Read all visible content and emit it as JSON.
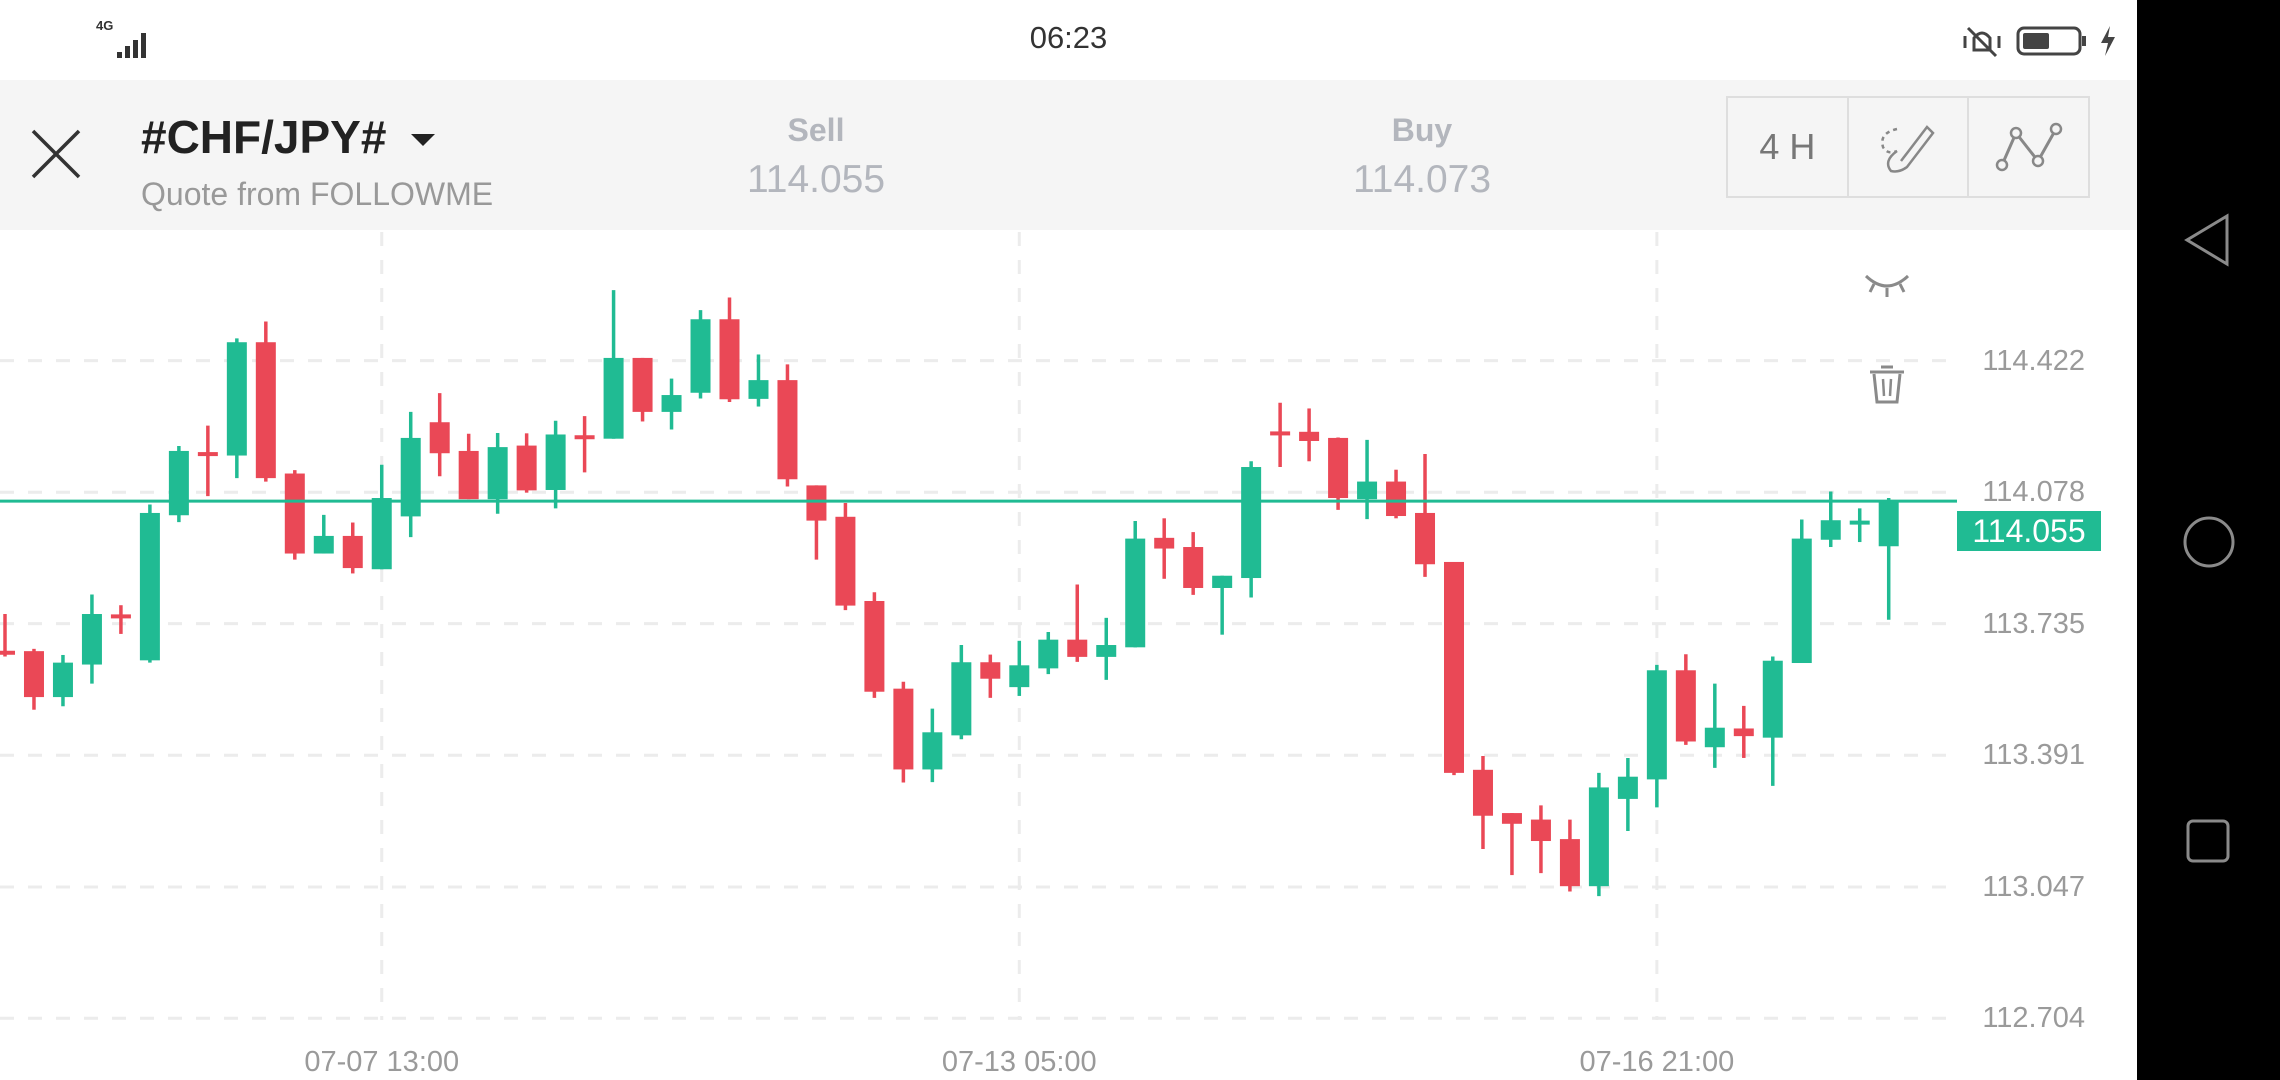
{
  "status_bar": {
    "time": "06:23",
    "network": "4G"
  },
  "header": {
    "symbol": "#CHF/JPY#",
    "subtitle": "Quote from FOLLOWME",
    "sell": {
      "label": "Sell",
      "value": "114.055"
    },
    "buy": {
      "label": "Buy",
      "value": "114.073"
    },
    "timeframe": "4 H",
    "icons": [
      "close-icon",
      "caret-down-icon",
      "draw-pen-icon",
      "line-tool-icon"
    ]
  },
  "side_tools": [
    "eye-closed-icon",
    "trash-icon"
  ],
  "nav_bar": [
    "back-icon",
    "home-icon",
    "recents-icon"
  ],
  "chart_data": {
    "type": "candlestick",
    "colors": {
      "up": "#20bb93",
      "down": "#ea4856",
      "current_line": "#20bb93"
    },
    "y_ticks": [
      "114.422",
      "114.078",
      "113.735",
      "113.391",
      "113.047",
      "112.704"
    ],
    "ylim": [
      112.704,
      114.65
    ],
    "x_ticks": [
      {
        "at_candle": 13,
        "label": "07-07 13:00"
      },
      {
        "at_candle": 35,
        "label": "07-13 05:00"
      },
      {
        "at_candle": 57,
        "label": "07-16 21:00"
      }
    ],
    "current_price": "114.055",
    "grid": true,
    "candles_ohlc": [
      [
        113.664,
        113.76,
        113.649,
        113.662
      ],
      [
        113.663,
        113.669,
        113.51,
        113.543
      ],
      [
        113.543,
        113.653,
        113.519,
        113.633
      ],
      [
        113.628,
        113.811,
        113.578,
        113.76
      ],
      [
        113.759,
        113.783,
        113.708,
        113.755
      ],
      [
        113.639,
        114.046,
        113.633,
        114.024
      ],
      [
        114.018,
        114.199,
        114.0,
        114.186
      ],
      [
        114.183,
        114.252,
        114.068,
        114.18
      ],
      [
        114.174,
        114.48,
        114.115,
        114.47
      ],
      [
        114.47,
        114.524,
        114.106,
        114.115
      ],
      [
        114.127,
        114.136,
        113.902,
        113.918
      ],
      [
        113.918,
        114.019,
        113.918,
        113.964
      ],
      [
        113.964,
        113.999,
        113.866,
        113.88
      ],
      [
        113.877,
        114.15,
        113.877,
        114.063
      ],
      [
        114.015,
        114.288,
        113.961,
        114.22
      ],
      [
        114.261,
        114.337,
        114.12,
        114.18
      ],
      [
        114.186,
        114.231,
        114.06,
        114.06
      ],
      [
        114.06,
        114.233,
        114.022,
        114.196
      ],
      [
        114.2,
        114.232,
        114.077,
        114.083
      ],
      [
        114.084,
        114.265,
        114.036,
        114.229
      ],
      [
        114.227,
        114.277,
        114.13,
        114.224
      ],
      [
        114.218,
        114.606,
        114.218,
        114.429
      ],
      [
        114.429,
        114.429,
        114.263,
        114.288
      ],
      [
        114.288,
        114.375,
        114.242,
        114.332
      ],
      [
        114.338,
        114.554,
        114.323,
        114.53
      ],
      [
        114.53,
        114.587,
        114.314,
        114.321
      ],
      [
        114.322,
        114.438,
        114.302,
        114.371
      ],
      [
        114.371,
        114.412,
        114.093,
        114.112
      ],
      [
        114.096,
        114.096,
        113.902,
        114.004
      ],
      [
        114.014,
        114.05,
        113.77,
        113.782
      ],
      [
        113.794,
        113.817,
        113.541,
        113.557
      ],
      [
        113.565,
        113.583,
        113.32,
        113.354
      ],
      [
        113.354,
        113.513,
        113.321,
        113.451
      ],
      [
        113.443,
        113.679,
        113.433,
        113.634
      ],
      [
        113.634,
        113.654,
        113.541,
        113.591
      ],
      [
        113.569,
        113.69,
        113.546,
        113.626
      ],
      [
        113.618,
        113.713,
        113.603,
        113.693
      ],
      [
        113.693,
        113.837,
        113.635,
        113.648
      ],
      [
        113.648,
        113.75,
        113.588,
        113.679
      ],
      [
        113.673,
        114.003,
        113.673,
        113.957
      ],
      [
        113.959,
        114.01,
        113.852,
        113.931
      ],
      [
        113.935,
        113.974,
        113.81,
        113.828
      ],
      [
        113.828,
        113.86,
        113.706,
        113.86
      ],
      [
        113.854,
        114.159,
        113.803,
        114.144
      ],
      [
        114.237,
        114.312,
        114.144,
        114.233
      ],
      [
        114.236,
        114.297,
        114.159,
        114.212
      ],
      [
        114.22,
        114.221,
        114.032,
        114.063
      ],
      [
        114.06,
        114.215,
        114.008,
        114.106
      ],
      [
        114.106,
        114.137,
        114.01,
        114.016
      ],
      [
        114.024,
        114.178,
        113.857,
        113.89
      ],
      [
        113.896,
        113.896,
        113.339,
        113.345
      ],
      [
        113.353,
        113.389,
        113.146,
        113.233
      ],
      [
        113.24,
        113.24,
        113.078,
        113.212
      ],
      [
        113.223,
        113.26,
        113.083,
        113.167
      ],
      [
        113.172,
        113.223,
        113.035,
        113.049
      ],
      [
        113.049,
        113.345,
        113.023,
        113.307
      ],
      [
        113.277,
        113.384,
        113.193,
        113.335
      ],
      [
        113.328,
        113.627,
        113.255,
        113.613
      ],
      [
        113.613,
        113.655,
        113.418,
        113.427
      ],
      [
        113.412,
        113.578,
        113.358,
        113.463
      ],
      [
        113.461,
        113.52,
        113.384,
        113.441
      ],
      [
        113.437,
        113.649,
        113.311,
        113.638
      ],
      [
        113.632,
        114.007,
        113.632,
        113.957
      ],
      [
        113.954,
        114.08,
        113.935,
        114.005
      ],
      [
        114.001,
        114.036,
        113.948,
        114.004
      ],
      [
        113.937,
        114.063,
        113.745,
        114.055
      ]
    ]
  }
}
